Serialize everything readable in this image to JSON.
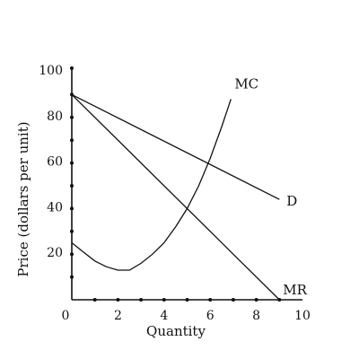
{
  "chart_data": {
    "type": "line",
    "title": "",
    "xlabel": "Quantity",
    "ylabel": "Price (dollars per unit)",
    "xlim": [
      0,
      10
    ],
    "ylim": [
      0,
      100
    ],
    "x_ticks": [
      0,
      2,
      4,
      6,
      8,
      10
    ],
    "y_ticks": [
      20,
      40,
      60,
      80,
      100
    ],
    "x_tick_labels": [
      "0",
      "2",
      "4",
      "6",
      "8",
      "10"
    ],
    "y_tick_labels": [
      "20",
      "40",
      "60",
      "80",
      "100"
    ],
    "x_minor_dots": [
      1,
      2,
      3,
      4,
      5,
      6,
      7,
      8,
      9
    ],
    "y_minor_dots": [
      10,
      20,
      30,
      40,
      50,
      60,
      70,
      80,
      90
    ],
    "grid": false,
    "line_color": "#111111",
    "series": [
      {
        "name": "D",
        "x": [
          0,
          9
        ],
        "y": [
          90,
          44
        ]
      },
      {
        "name": "MR",
        "x": [
          0,
          9
        ],
        "y": [
          90,
          0
        ]
      },
      {
        "name": "MC",
        "x": [
          0,
          0.5,
          1,
          1.5,
          2,
          2.5,
          3,
          3.5,
          4,
          4.5,
          5,
          5.5,
          6,
          6.5,
          6.9
        ],
        "y": [
          25,
          21,
          17,
          14.5,
          13,
          13,
          16,
          20,
          25,
          32,
          40,
          50,
          62,
          76,
          88
        ]
      }
    ]
  }
}
